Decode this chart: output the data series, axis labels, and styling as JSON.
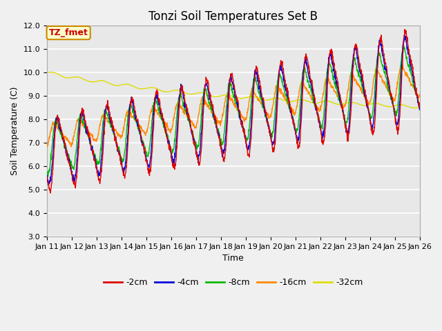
{
  "title": "Tonzi Soil Temperatures Set B",
  "xlabel": "Time",
  "ylabel": "Soil Temperature (C)",
  "ylim": [
    3.0,
    12.0
  ],
  "yticks": [
    3.0,
    4.0,
    5.0,
    6.0,
    7.0,
    8.0,
    9.0,
    10.0,
    11.0,
    12.0
  ],
  "x_labels": [
    "Jan 11",
    "Jan 12",
    "Jan 13",
    "Jan 14",
    "Jan 15",
    "Jan 16",
    "Jan 17",
    "Jan 18",
    "Jan 19",
    "Jan 20",
    "Jan 21",
    "Jan 22",
    "Jan 23",
    "Jan 24",
    "Jan 25",
    "Jan 26"
  ],
  "colors": {
    "-2cm": "#dd0000",
    "-4cm": "#0000dd",
    "-8cm": "#00bb00",
    "-16cm": "#ff8800",
    "-32cm": "#dddd00"
  },
  "legend_labels": [
    "-2cm",
    "-4cm",
    "-8cm",
    "-16cm",
    "-32cm"
  ],
  "annotation_text": "TZ_fmet",
  "annotation_bg": "#ffffcc",
  "annotation_border": "#cc8800",
  "annotation_text_color": "#cc0000",
  "plot_bg": "#e8e8e8",
  "fig_bg": "#f0f0f0",
  "grid_color": "#ffffff",
  "title_fontsize": 12,
  "axis_label_fontsize": 9,
  "tick_fontsize": 8
}
